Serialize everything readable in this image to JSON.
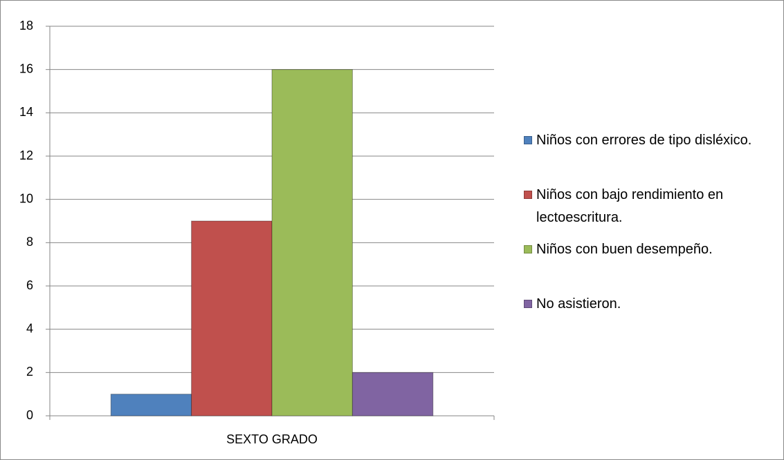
{
  "chart_data": {
    "type": "bar",
    "categories": [
      "SEXTO GRADO"
    ],
    "series": [
      {
        "name": "Niños con errores de tipo disléxico.",
        "color": "#4f81bd",
        "values": [
          1
        ]
      },
      {
        "name": "Niños con bajo rendimiento en lectoescritura.",
        "color": "#c0504d",
        "values": [
          9
        ]
      },
      {
        "name": "Niños con buen desempeño.",
        "color": "#9bbb59",
        "values": [
          16
        ]
      },
      {
        "name": "No asistieron.",
        "color": "#8064a2",
        "values": [
          2
        ]
      }
    ],
    "ylim": [
      0,
      18
    ],
    "yticks": [
      0,
      2,
      4,
      6,
      8,
      10,
      12,
      14,
      16,
      18
    ],
    "grid": true,
    "legend": "right"
  }
}
